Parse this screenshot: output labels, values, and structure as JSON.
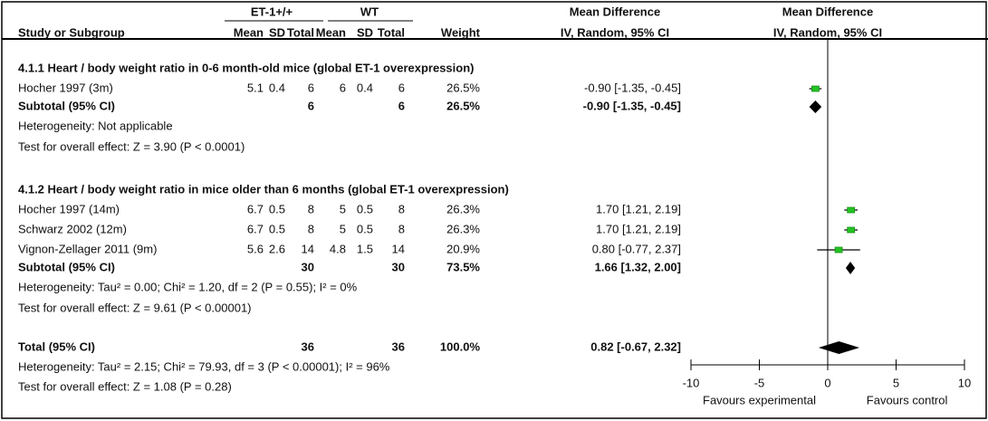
{
  "chart_data": {
    "type": "forest",
    "header": {
      "exp_group": "ET-1+/+",
      "ctl_group": "WT",
      "md_title": "Mean Difference",
      "plot_title": "Mean Difference",
      "columns": [
        "Study or Subgroup",
        "Mean",
        "SD",
        "Total",
        "Mean",
        "SD",
        "Total",
        "Weight",
        "IV, Random, 95% CI"
      ],
      "plot_method": "IV, Random, 95% CI"
    },
    "groups": [
      {
        "title": "4.1.1 Heart / body weight ratio in 0-6 month-old mice (global ET-1 overexpression)",
        "studies": [
          {
            "name": "Hocher 1997 (3m)",
            "exp_mean": 5.1,
            "exp_sd": 0.4,
            "exp_total": 6,
            "ctl_mean": 6,
            "ctl_sd": 0.4,
            "ctl_total": 6,
            "weight": "26.5%",
            "ci_label": "-0.90 [-1.35, -0.45]",
            "md": -0.9,
            "lo": -1.35,
            "hi": -0.45
          }
        ],
        "subtotal": {
          "label": "Subtotal (95% CI)",
          "exp_total": 6,
          "ctl_total": 6,
          "weight": "26.5%",
          "ci_label": "-0.90 [-1.35, -0.45]",
          "md": -0.9,
          "lo": -1.35,
          "hi": -0.45
        },
        "heterogeneity": "Heterogeneity: Not applicable",
        "effect_test": "Test for overall effect: Z = 3.90 (P < 0.0001)"
      },
      {
        "title": "4.1.2 Heart / body weight ratio in mice older than 6 months (global ET-1 overexpression)",
        "studies": [
          {
            "name": "Hocher 1997 (14m)",
            "exp_mean": 6.7,
            "exp_sd": 0.5,
            "exp_total": 8,
            "ctl_mean": 5,
            "ctl_sd": 0.5,
            "ctl_total": 8,
            "weight": "26.3%",
            "ci_label": "1.70 [1.21, 2.19]",
            "md": 1.7,
            "lo": 1.21,
            "hi": 2.19
          },
          {
            "name": "Schwarz 2002 (12m)",
            "exp_mean": 6.7,
            "exp_sd": 0.5,
            "exp_total": 8,
            "ctl_mean": 5,
            "ctl_sd": 0.5,
            "ctl_total": 8,
            "weight": "26.3%",
            "ci_label": "1.70 [1.21, 2.19]",
            "md": 1.7,
            "lo": 1.21,
            "hi": 2.19
          },
          {
            "name": "Vignon-Zellager 2011 (9m)",
            "exp_mean": 5.6,
            "exp_sd": 2.6,
            "exp_total": 14,
            "ctl_mean": 4.8,
            "ctl_sd": 1.5,
            "ctl_total": 14,
            "weight": "20.9%",
            "ci_label": "0.80 [-0.77, 2.37]",
            "md": 0.8,
            "lo": -0.77,
            "hi": 2.37
          }
        ],
        "subtotal": {
          "label": "Subtotal (95% CI)",
          "exp_total": 30,
          "ctl_total": 30,
          "weight": "73.5%",
          "ci_label": "1.66 [1.32, 2.00]",
          "md": 1.66,
          "lo": 1.32,
          "hi": 2.0
        },
        "heterogeneity": "Heterogeneity: Tau² = 0.00; Chi² = 1.20, df = 2 (P = 0.55); I² = 0%",
        "effect_test": "Test for overall effect: Z = 9.61 (P < 0.00001)"
      }
    ],
    "total": {
      "label": "Total (95% CI)",
      "exp_total": 36,
      "ctl_total": 36,
      "weight": "100.0%",
      "ci_label": "0.82 [-0.67, 2.32]",
      "md": 0.82,
      "lo": -0.67,
      "hi": 2.32,
      "heterogeneity": "Heterogeneity: Tau² = 2.15; Chi² = 79.93, df = 3 (P < 0.00001); I² = 96%",
      "effect_test": "Test for overall effect: Z = 1.08 (P = 0.28)"
    },
    "xlim": [
      -10,
      10
    ],
    "xticks": [
      -10,
      -5,
      0,
      5,
      10
    ],
    "x_left_label": "Favours experimental",
    "x_right_label": "Favours control",
    "square_color": "#22c322"
  }
}
